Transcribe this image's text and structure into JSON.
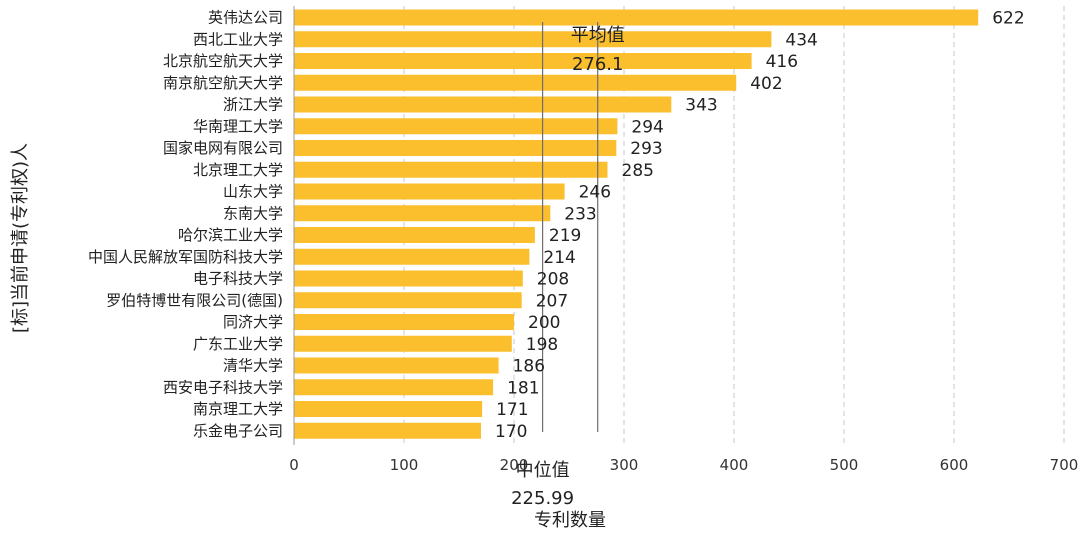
{
  "chart_data": {
    "type": "bar",
    "orientation": "horizontal",
    "categories": [
      "英伟达公司",
      "西北工业大学",
      "北京航空航天大学",
      "南京航空航天大学",
      "浙江大学",
      "华南理工大学",
      "国家电网有限公司",
      "北京理工大学",
      "山东大学",
      "东南大学",
      "哈尔滨工业大学",
      "中国人民解放军国防科技大学",
      "电子科技大学",
      "罗伯特博世有限公司(德国)",
      "同济大学",
      "广东工业大学",
      "清华大学",
      "西安电子科技大学",
      "南京理工大学",
      "乐金电子公司"
    ],
    "values": [
      622,
      434,
      416,
      402,
      343,
      294,
      293,
      285,
      246,
      233,
      219,
      214,
      208,
      207,
      200,
      198,
      186,
      181,
      171,
      170
    ],
    "xlabel": "专利数量",
    "ylabel": "[标]当前申请(专利权)人",
    "xlim": [
      0,
      700
    ],
    "xticks": [
      0,
      100,
      200,
      300,
      400,
      500,
      600,
      700
    ],
    "grid": "vertical-dashed",
    "bar_color": "#FBBE2D",
    "reference_lines": [
      {
        "label": "平均值",
        "value": 276.1,
        "value_text": "276.1",
        "label_position": "top"
      },
      {
        "label": "中位值",
        "value": 225.99,
        "value_text": "225.99",
        "label_position": "bottom"
      }
    ]
  }
}
